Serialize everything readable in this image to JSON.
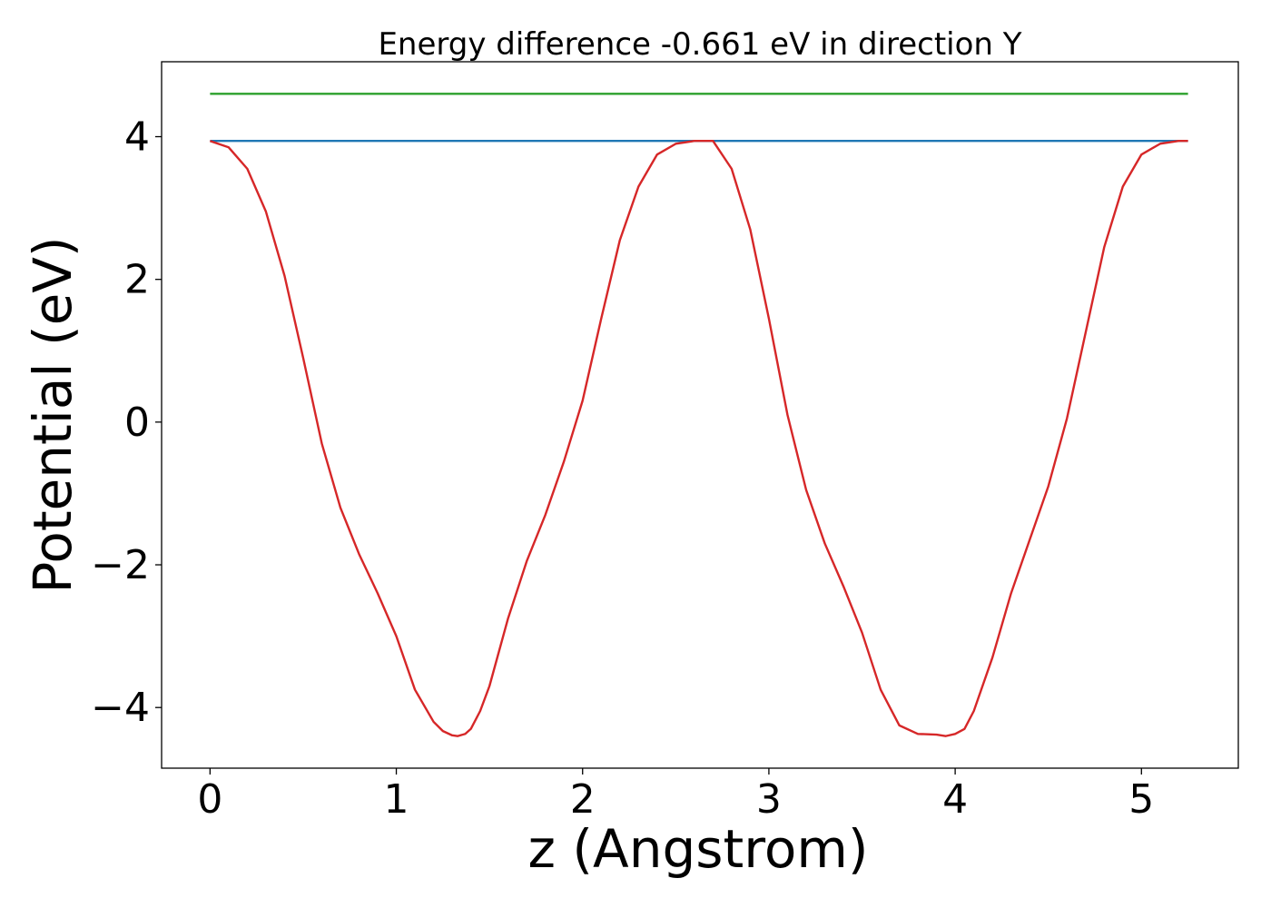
{
  "chart_data": {
    "type": "line",
    "title": "Energy difference -0.661 eV in direction Y",
    "xlabel": "z (Angstrom)",
    "ylabel": "Potential (eV)",
    "xlim": [
      -0.26,
      5.52
    ],
    "ylim": [
      -4.85,
      5.05
    ],
    "xticks": [
      0,
      1,
      2,
      3,
      4,
      5
    ],
    "yticks": [
      -4,
      -2,
      0,
      2,
      4
    ],
    "ytick_labels": [
      "−4",
      "−2",
      "0",
      "2",
      "4"
    ],
    "grid": false,
    "legend": false,
    "series": [
      {
        "color": "#2ca02c",
        "x": [
          0,
          5.25
        ],
        "y": [
          4.6,
          4.6
        ]
      },
      {
        "color": "#1f77b4",
        "x": [
          0,
          5.25
        ],
        "y": [
          3.94,
          3.94
        ]
      },
      {
        "color": "#d62728",
        "x": [
          0,
          0.1,
          0.2,
          0.3,
          0.4,
          0.5,
          0.6,
          0.7,
          0.8,
          0.9,
          1.0,
          1.1,
          1.2,
          1.25,
          1.3,
          1.33,
          1.37,
          1.4,
          1.45,
          1.5,
          1.6,
          1.7,
          1.8,
          1.9,
          2.0,
          2.1,
          2.2,
          2.3,
          2.4,
          2.5,
          2.6,
          2.65,
          2.7,
          2.8,
          2.9,
          3.0,
          3.1,
          3.2,
          3.3,
          3.4,
          3.5,
          3.6,
          3.7,
          3.8,
          3.9,
          3.95,
          4.0,
          4.05,
          4.1,
          4.2,
          4.3,
          4.4,
          4.5,
          4.6,
          4.7,
          4.8,
          4.9,
          5.0,
          5.1,
          5.2,
          5.25
        ],
        "y": [
          3.94,
          3.85,
          3.55,
          2.95,
          2.05,
          0.9,
          -0.3,
          -1.2,
          -1.85,
          -2.4,
          -3.0,
          -3.75,
          -4.2,
          -4.33,
          -4.39,
          -4.4,
          -4.37,
          -4.3,
          -4.05,
          -3.7,
          -2.75,
          -1.95,
          -1.3,
          -0.55,
          0.3,
          1.45,
          2.55,
          3.3,
          3.75,
          3.9,
          3.94,
          3.94,
          3.94,
          3.55,
          2.7,
          1.45,
          0.1,
          -0.95,
          -1.7,
          -2.3,
          -2.95,
          -3.75,
          -4.25,
          -4.37,
          -4.38,
          -4.4,
          -4.37,
          -4.3,
          -4.05,
          -3.3,
          -2.4,
          -1.65,
          -0.9,
          0.05,
          1.25,
          2.45,
          3.3,
          3.75,
          3.9,
          3.94,
          3.94
        ]
      }
    ]
  }
}
